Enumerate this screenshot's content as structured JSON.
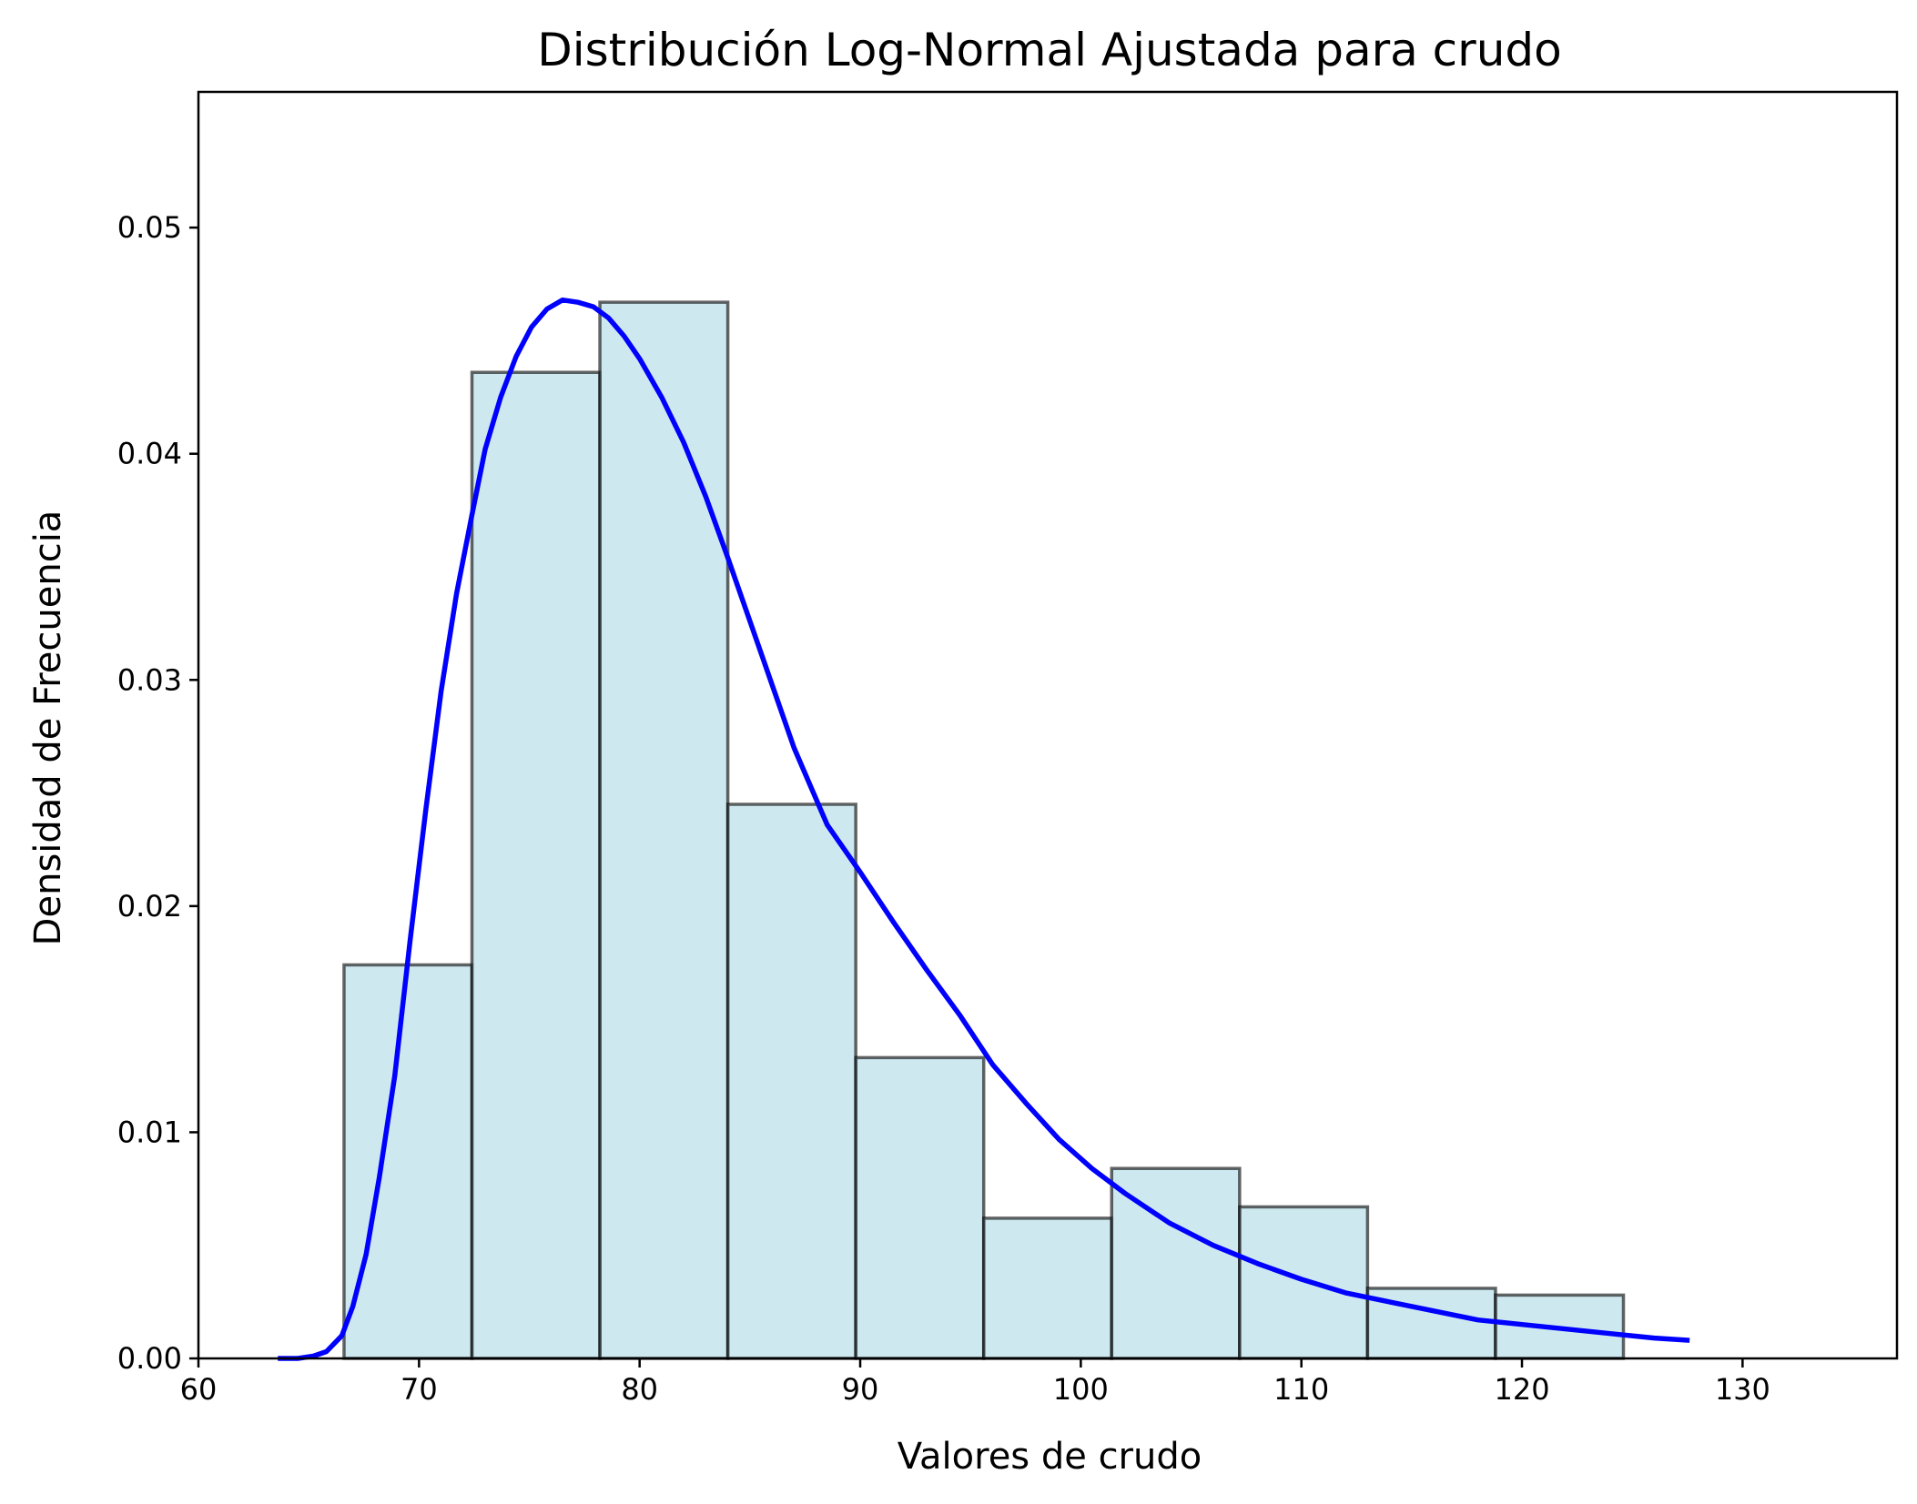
{
  "chart_data": {
    "type": "bar",
    "title": "Distribución Log-Normal Ajustada para crudo",
    "xlabel": "Valores de crudo",
    "ylabel": "Densidad de Frecuencia",
    "xlim": [
      60,
      137
    ],
    "ylim": [
      0,
      0.056
    ],
    "xticks": [
      60,
      70,
      80,
      90,
      100,
      110,
      120,
      130
    ],
    "yticks": [
      0.0,
      0.01,
      0.02,
      0.03,
      0.04,
      0.05
    ],
    "xtick_labels": [
      "60",
      "70",
      "80",
      "90",
      "100",
      "110",
      "120",
      "130"
    ],
    "ytick_labels": [
      "0.00",
      "0.01",
      "0.02",
      "0.03",
      "0.04",
      "0.05"
    ],
    "grid": false,
    "legend": "none",
    "histogram": {
      "color": "#add8e6",
      "edgecolor": "#000000",
      "bins": [
        {
          "x0": 66.6,
          "x1": 72.4,
          "value": 0.0174
        },
        {
          "x0": 72.4,
          "x1": 78.2,
          "value": 0.0436
        },
        {
          "x0": 78.2,
          "x1": 84.0,
          "value": 0.0467
        },
        {
          "x0": 84.0,
          "x1": 89.8,
          "value": 0.0245
        },
        {
          "x0": 89.8,
          "x1": 95.6,
          "value": 0.0133
        },
        {
          "x0": 95.6,
          "x1": 101.4,
          "value": 0.0062
        },
        {
          "x0": 101.4,
          "x1": 107.2,
          "value": 0.0084
        },
        {
          "x0": 107.2,
          "x1": 113.0,
          "value": 0.0067
        },
        {
          "x0": 113.0,
          "x1": 118.8,
          "value": 0.0031
        },
        {
          "x0": 118.8,
          "x1": 124.6,
          "value": 0.0028
        }
      ]
    },
    "fitted_curve": {
      "type": "line",
      "color": "#0000ff",
      "x": [
        63.6,
        64.5,
        65.2,
        65.8,
        66.5,
        67.0,
        67.6,
        68.2,
        68.9,
        69.6,
        70.3,
        71.0,
        71.7,
        72.4,
        73.0,
        73.7,
        74.4,
        75.1,
        75.8,
        76.5,
        77.2,
        77.9,
        78.6,
        79.3,
        80.0,
        81.0,
        82.0,
        83.0,
        84.0,
        85.5,
        87.0,
        88.5,
        90.0,
        91.5,
        93.0,
        94.5,
        96.0,
        97.5,
        99.0,
        100.5,
        102.0,
        104.0,
        106.0,
        108.0,
        110.0,
        112.0,
        114.0,
        116.0,
        118.0,
        120.0,
        122.0,
        124.0,
        126.0,
        127.6
      ],
      "y": [
        0.0,
        0.0,
        0.0001,
        0.0003,
        0.001,
        0.0023,
        0.0046,
        0.008,
        0.0125,
        0.0185,
        0.0242,
        0.0295,
        0.0338,
        0.0373,
        0.0402,
        0.0425,
        0.0443,
        0.0456,
        0.0464,
        0.0468,
        0.0467,
        0.0465,
        0.046,
        0.0452,
        0.0442,
        0.0425,
        0.0405,
        0.0381,
        0.0354,
        0.0312,
        0.027,
        0.0236,
        0.0215,
        0.0193,
        0.0172,
        0.0152,
        0.013,
        0.0113,
        0.0097,
        0.0084,
        0.0073,
        0.006,
        0.005,
        0.0042,
        0.0035,
        0.0029,
        0.0025,
        0.0021,
        0.0017,
        0.0015,
        0.0013,
        0.0011,
        0.0009,
        0.0008
      ]
    }
  }
}
